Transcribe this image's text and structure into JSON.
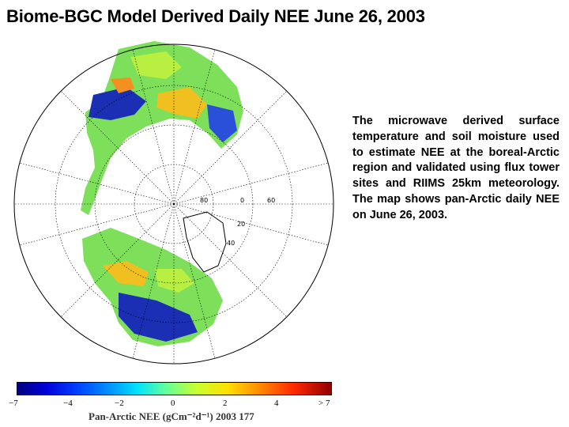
{
  "title": "Biome-BGC Model Derived Daily NEE June 26, 2003",
  "description": "The microwave derived surface temperature and soil moisture used to estimate NEE at the boreal-Arctic region and validated using flux tower sites and RIIMS 25km meteorology. The map shows pan-Arctic daily NEE on June 26, 2003.",
  "map": {
    "projection": "north polar stereographic",
    "graticule_labels": [
      "80",
      "0",
      "60",
      "20",
      "40"
    ]
  },
  "colorbar": {
    "ticks": [
      "−7",
      "−4",
      "−2",
      "0",
      "2",
      "4",
      "> 7"
    ],
    "label": "Pan-Arctic NEE (gCm⁻²d⁻¹) 2003 177",
    "colors": [
      "#00007f",
      "#0040ff",
      "#00e0ff",
      "#c8ff30",
      "#ffe000",
      "#ff8c00",
      "#900000"
    ]
  }
}
